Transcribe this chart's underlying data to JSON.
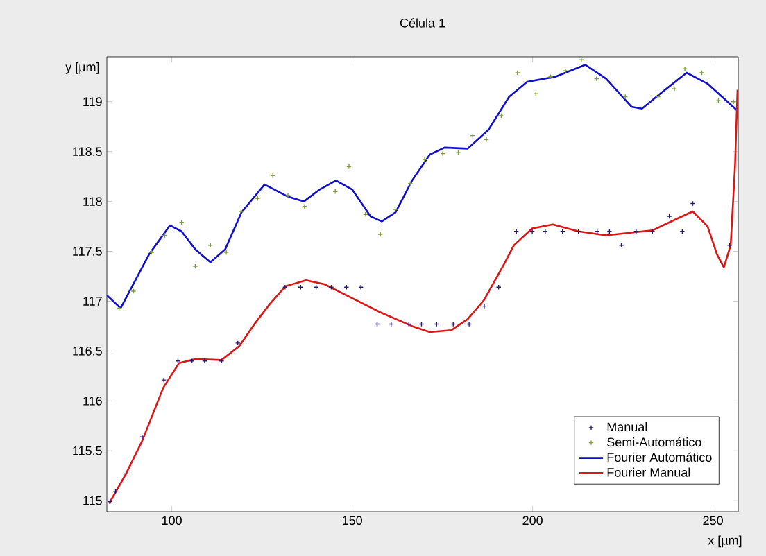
{
  "chart_data": {
    "type": "scatter",
    "title": "Célula 1",
    "xlabel": "x [µm]",
    "ylabel": "y [µm]",
    "xlim": [
      82,
      257
    ],
    "ylim": [
      114.89,
      119.45
    ],
    "xticks": [
      100,
      150,
      200,
      250
    ],
    "yticks": [
      115,
      115.5,
      116,
      116.5,
      117,
      117.5,
      118,
      118.5,
      119
    ],
    "legend": "bottom right",
    "grid": false,
    "series": [
      {
        "name": "Manual",
        "marker": "cross",
        "color": "#2b1a6e",
        "x": [
          82.9,
          84.4,
          87.3,
          91.8,
          97.8,
          101.7,
          105.6,
          109.1,
          113.8,
          118.3,
          131.4,
          135.7,
          140,
          144.2,
          148.4,
          152.4,
          156.9,
          160.8,
          165.7,
          169.2,
          173.4,
          178,
          182.4,
          186.6,
          190.6,
          195.5,
          199.9,
          203.5,
          208.3,
          212.7,
          217.9,
          221.3,
          224.6,
          228.7,
          233.2,
          237.9,
          241.5,
          244.4,
          254.6
        ],
        "values": [
          114.99,
          115.09,
          115.27,
          115.64,
          116.21,
          116.4,
          116.4,
          116.4,
          116.4,
          116.58,
          117.14,
          117.14,
          117.14,
          117.14,
          117.14,
          117.14,
          116.77,
          116.77,
          116.77,
          116.77,
          116.77,
          116.77,
          116.77,
          116.95,
          117.14,
          117.7,
          117.7,
          117.7,
          117.7,
          117.7,
          117.7,
          117.7,
          117.56,
          117.7,
          117.7,
          117.85,
          117.7,
          117.98,
          117.56
        ]
      },
      {
        "name": "Semi-Automático",
        "marker": "cross",
        "color": "#7aa03a",
        "x": [
          85.4,
          89.4,
          94.4,
          98,
          102.7,
          106.5,
          110.7,
          115.1,
          119.2,
          123.8,
          128,
          132.2,
          136.8,
          145.3,
          149.1,
          153.7,
          157.8,
          161.9,
          166.1,
          170.1,
          175.1,
          179.4,
          183.4,
          187.2,
          191.3,
          195.8,
          200.9,
          205,
          209.1,
          213.5,
          217.7,
          225.7,
          234.8,
          239.3,
          242.2,
          246.9,
          251.5,
          255.7
        ],
        "values": [
          116.93,
          117.1,
          117.49,
          117.66,
          117.79,
          117.35,
          117.56,
          117.49,
          117.9,
          118.03,
          118.26,
          118.06,
          117.95,
          118.1,
          118.35,
          117.87,
          117.67,
          117.92,
          118.18,
          118.42,
          118.48,
          118.49,
          118.66,
          118.62,
          118.86,
          119.29,
          119.08,
          119.25,
          119.31,
          119.42,
          119.23,
          119.05,
          119.05,
          119.13,
          119.33,
          119.29,
          119.01,
          119.0
        ]
      },
      {
        "name": "Fourier Automático",
        "type": "line",
        "marker": "none",
        "color": "#1010c8",
        "x": [
          82,
          85.8,
          93.7,
          99.5,
          102.7,
          106.5,
          110.7,
          114.8,
          119.3,
          125.7,
          132.1,
          136.6,
          141,
          145.5,
          150,
          155.1,
          158.2,
          162,
          166.6,
          171.5,
          175.6,
          182,
          187.8,
          193.5,
          198.5,
          206.3,
          214.6,
          220.4,
          227.4,
          230.3,
          235.7,
          242.7,
          248.5,
          256.8
        ],
        "values": [
          117.06,
          116.93,
          117.47,
          117.76,
          117.7,
          117.52,
          117.39,
          117.52,
          117.89,
          118.17,
          118.05,
          118.0,
          118.12,
          118.21,
          118.12,
          117.85,
          117.8,
          117.89,
          118.21,
          118.47,
          118.54,
          118.53,
          118.72,
          119.05,
          119.2,
          119.25,
          119.37,
          119.23,
          118.95,
          118.93,
          119.09,
          119.29,
          119.18,
          118.91
        ]
      },
      {
        "name": "Fourier Manual",
        "type": "line",
        "marker": "none",
        "color": "#dd1515",
        "x": [
          82.6,
          87.3,
          91.8,
          97.6,
          102,
          106.5,
          113.8,
          118.7,
          123.1,
          126.9,
          131.5,
          137.2,
          142.3,
          150,
          157.7,
          166.6,
          171.5,
          177.5,
          182,
          186.5,
          192.2,
          194.8,
          199.9,
          205.6,
          212.7,
          220.4,
          233.2,
          239.6,
          244.4,
          248.5,
          251.1,
          253,
          254.9,
          256.1,
          256.8
        ],
        "values": [
          114.97,
          115.27,
          115.6,
          116.13,
          116.38,
          116.42,
          116.41,
          116.55,
          116.78,
          116.96,
          117.15,
          117.21,
          117.17,
          117.03,
          116.89,
          116.75,
          116.69,
          116.71,
          116.82,
          117.01,
          117.38,
          117.56,
          117.73,
          117.77,
          117.7,
          117.66,
          117.71,
          117.82,
          117.9,
          117.75,
          117.47,
          117.34,
          117.56,
          118.35,
          119.12
        ]
      }
    ]
  }
}
